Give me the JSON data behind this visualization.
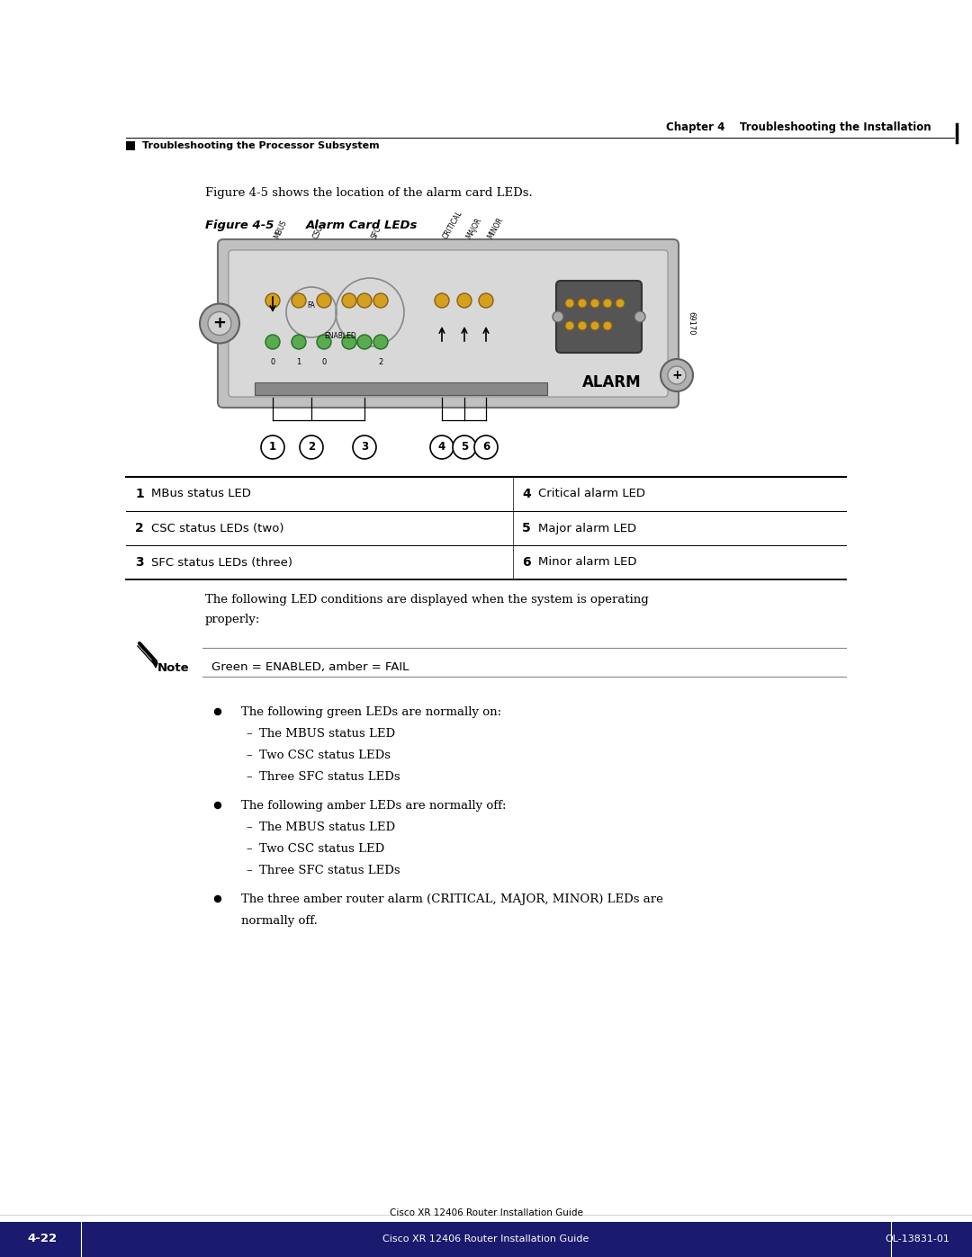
{
  "page_bg": "#ffffff",
  "header_text": "Chapter 4    Troubleshooting the Installation",
  "subheader_text": "Troubleshooting the Processor Subsystem",
  "intro_text": "Figure 4-5 shows the location of the alarm card LEDs.",
  "figure_label": "Figure 4-5",
  "figure_title": "Alarm Card LEDs",
  "table_rows": [
    [
      "1",
      "MBus status LED",
      "4",
      "Critical alarm LED"
    ],
    [
      "2",
      "CSC status LEDs (two)",
      "5",
      "Major alarm LED"
    ],
    [
      "3",
      "SFC status LEDs (three)",
      "6",
      "Minor alarm LED"
    ]
  ],
  "led_conditions_line1": "The following LED conditions are displayed when the system is operating",
  "led_conditions_line2": "properly:",
  "note_text": "Green = ENABLED, amber = FAIL",
  "bullet_points": [
    {
      "text": "The following green LEDs are normally on:",
      "sub": [
        "The MBUS status LED",
        "Two CSC status LEDs",
        "Three SFC status LEDs"
      ]
    },
    {
      "text": "The following amber LEDs are normally off:",
      "sub": [
        "The MBUS status LED",
        "Two CSC status LED",
        "Three SFC status LEDs"
      ]
    },
    {
      "text": "The three amber router alarm (CRITICAL, MAJOR, MINOR) LEDs are",
      "text2": "normally off.",
      "sub": []
    }
  ],
  "footer_left": "Cisco XR 12406 Router Installation Guide",
  "footer_page": "4-22",
  "footer_right": "OL-13831-01",
  "amber_color": "#d4a020",
  "green_color": "#5aaa50"
}
